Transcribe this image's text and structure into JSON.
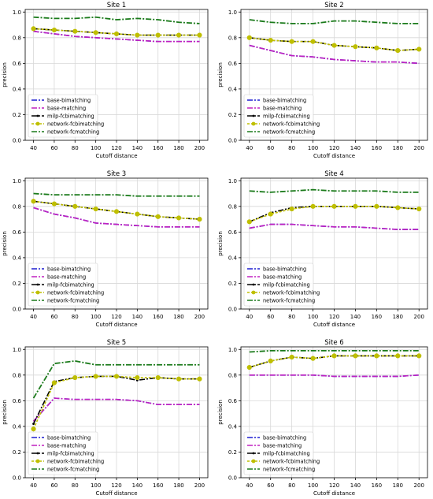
{
  "shared": {
    "xlabel": "Cutoff distance",
    "ylabel": "precision",
    "x": [
      40,
      60,
      80,
      100,
      120,
      140,
      160,
      180,
      200
    ],
    "xticks": [
      "40",
      "60",
      "80",
      "100",
      "120",
      "140",
      "160",
      "180",
      "200"
    ],
    "yticks": [
      "0.0",
      "0.2",
      "0.4",
      "0.6",
      "0.8",
      "1.0"
    ],
    "legend": [
      {
        "name": "base-bimatching",
        "color": "#1f1fd0",
        "marker": "none"
      },
      {
        "name": "base-matching",
        "color": "#c020c0",
        "marker": "none"
      },
      {
        "name": "milp-fcbimatching",
        "color": "#000000",
        "marker": "dot"
      },
      {
        "name": "network-fcbimatching",
        "color": "#bfbf00",
        "marker": "circle"
      },
      {
        "name": "network-fcmatching",
        "color": "#1a7a1a",
        "marker": "none"
      }
    ]
  },
  "chart_data": [
    {
      "type": "line",
      "title": "Site 1",
      "xlabel": "Cutoff distance",
      "ylabel": "precision",
      "ylim": [
        0,
        1.0
      ],
      "grid": true,
      "legend_position": "lower-left",
      "categories": [
        40,
        60,
        80,
        100,
        120,
        140,
        160,
        180,
        200
      ],
      "series": [
        {
          "name": "base-bimatching",
          "values": [
            0.85,
            0.83,
            0.81,
            0.8,
            0.79,
            0.78,
            0.77,
            0.77,
            0.77
          ]
        },
        {
          "name": "base-matching",
          "values": [
            0.85,
            0.83,
            0.81,
            0.8,
            0.79,
            0.78,
            0.77,
            0.77,
            0.77
          ]
        },
        {
          "name": "milp-fcbimatching",
          "values": [
            0.87,
            0.86,
            0.85,
            0.84,
            0.83,
            0.82,
            0.82,
            0.82,
            0.82
          ]
        },
        {
          "name": "network-fcbimatching",
          "values": [
            0.87,
            0.86,
            0.85,
            0.84,
            0.83,
            0.82,
            0.82,
            0.82,
            0.82
          ]
        },
        {
          "name": "network-fcmatching",
          "values": [
            0.96,
            0.95,
            0.95,
            0.96,
            0.94,
            0.95,
            0.94,
            0.92,
            0.91
          ]
        }
      ]
    },
    {
      "type": "line",
      "title": "Site 2",
      "xlabel": "Cutoff distance",
      "ylabel": "precision",
      "ylim": [
        0,
        1.0
      ],
      "grid": true,
      "legend_position": "lower-left",
      "categories": [
        40,
        60,
        80,
        100,
        120,
        140,
        160,
        180,
        200
      ],
      "series": [
        {
          "name": "base-bimatching",
          "values": [
            0.74,
            0.7,
            0.66,
            0.65,
            0.63,
            0.62,
            0.61,
            0.61,
            0.6
          ]
        },
        {
          "name": "base-matching",
          "values": [
            0.74,
            0.7,
            0.66,
            0.65,
            0.63,
            0.62,
            0.61,
            0.61,
            0.6
          ]
        },
        {
          "name": "milp-fcbimatching",
          "values": [
            0.8,
            0.78,
            0.77,
            0.77,
            0.74,
            0.73,
            0.72,
            0.7,
            0.71
          ]
        },
        {
          "name": "network-fcbimatching",
          "values": [
            0.8,
            0.78,
            0.77,
            0.77,
            0.74,
            0.73,
            0.72,
            0.7,
            0.71
          ]
        },
        {
          "name": "network-fcmatching",
          "values": [
            0.94,
            0.92,
            0.91,
            0.91,
            0.93,
            0.93,
            0.92,
            0.91,
            0.91
          ]
        }
      ]
    },
    {
      "type": "line",
      "title": "Site 3",
      "xlabel": "Cutoff distance",
      "ylabel": "precision",
      "ylim": [
        0,
        1.0
      ],
      "grid": true,
      "legend_position": "lower-left",
      "categories": [
        40,
        60,
        80,
        100,
        120,
        140,
        160,
        180,
        200
      ],
      "series": [
        {
          "name": "base-bimatching",
          "values": [
            0.79,
            0.74,
            0.71,
            0.67,
            0.66,
            0.65,
            0.64,
            0.64,
            0.64
          ]
        },
        {
          "name": "base-matching",
          "values": [
            0.79,
            0.74,
            0.71,
            0.67,
            0.66,
            0.65,
            0.64,
            0.64,
            0.64
          ]
        },
        {
          "name": "milp-fcbimatching",
          "values": [
            0.84,
            0.82,
            0.8,
            0.78,
            0.76,
            0.74,
            0.72,
            0.71,
            0.7
          ]
        },
        {
          "name": "network-fcbimatching",
          "values": [
            0.84,
            0.82,
            0.8,
            0.78,
            0.76,
            0.74,
            0.72,
            0.71,
            0.7
          ]
        },
        {
          "name": "network-fcmatching",
          "values": [
            0.9,
            0.89,
            0.89,
            0.89,
            0.89,
            0.88,
            0.88,
            0.88,
            0.88
          ]
        }
      ]
    },
    {
      "type": "line",
      "title": "Site 4",
      "xlabel": "Cutoff distance",
      "ylabel": "precision",
      "ylim": [
        0,
        1.0
      ],
      "grid": true,
      "legend_position": "lower-left",
      "categories": [
        40,
        60,
        80,
        100,
        120,
        140,
        160,
        180,
        200
      ],
      "series": [
        {
          "name": "base-bimatching",
          "values": [
            0.63,
            0.66,
            0.66,
            0.65,
            0.64,
            0.64,
            0.63,
            0.62,
            0.62
          ]
        },
        {
          "name": "base-matching",
          "values": [
            0.63,
            0.66,
            0.66,
            0.65,
            0.64,
            0.64,
            0.63,
            0.62,
            0.62
          ]
        },
        {
          "name": "milp-fcbimatching",
          "values": [
            0.68,
            0.75,
            0.79,
            0.8,
            0.8,
            0.8,
            0.8,
            0.79,
            0.78
          ]
        },
        {
          "name": "network-fcbimatching",
          "values": [
            0.68,
            0.74,
            0.78,
            0.8,
            0.8,
            0.8,
            0.8,
            0.79,
            0.78
          ]
        },
        {
          "name": "network-fcmatching",
          "values": [
            0.92,
            0.91,
            0.92,
            0.93,
            0.92,
            0.92,
            0.92,
            0.91,
            0.91
          ]
        }
      ]
    },
    {
      "type": "line",
      "title": "Site 5",
      "xlabel": "Cutoff distance",
      "ylabel": "precision",
      "ylim": [
        0,
        1.0
      ],
      "grid": true,
      "legend_position": "lower-left",
      "categories": [
        40,
        60,
        80,
        100,
        120,
        140,
        160,
        180,
        200
      ],
      "series": [
        {
          "name": "base-bimatching",
          "values": [
            0.44,
            0.62,
            0.61,
            0.61,
            0.61,
            0.6,
            0.57,
            0.57,
            0.57
          ]
        },
        {
          "name": "base-matching",
          "values": [
            0.44,
            0.62,
            0.61,
            0.61,
            0.61,
            0.6,
            0.57,
            0.57,
            0.57
          ]
        },
        {
          "name": "milp-fcbimatching",
          "values": [
            0.42,
            0.75,
            0.78,
            0.79,
            0.79,
            0.76,
            0.78,
            0.77,
            0.77
          ]
        },
        {
          "name": "network-fcbimatching",
          "values": [
            0.38,
            0.74,
            0.78,
            0.79,
            0.79,
            0.78,
            0.78,
            0.77,
            0.77
          ]
        },
        {
          "name": "network-fcmatching",
          "values": [
            0.62,
            0.89,
            0.91,
            0.88,
            0.88,
            0.88,
            0.88,
            0.88,
            0.88
          ]
        }
      ]
    },
    {
      "type": "line",
      "title": "Site 6",
      "xlabel": "Cutoff distance",
      "ylabel": "precision",
      "ylim": [
        0,
        1.0
      ],
      "grid": true,
      "legend_position": "lower-left",
      "categories": [
        40,
        60,
        80,
        100,
        120,
        140,
        160,
        180,
        200
      ],
      "series": [
        {
          "name": "base-bimatching",
          "values": [
            0.8,
            0.8,
            0.8,
            0.8,
            0.79,
            0.79,
            0.79,
            0.79,
            0.8
          ]
        },
        {
          "name": "base-matching",
          "values": [
            0.8,
            0.8,
            0.8,
            0.8,
            0.79,
            0.79,
            0.79,
            0.79,
            0.8
          ]
        },
        {
          "name": "milp-fcbimatching",
          "values": [
            0.86,
            0.91,
            0.94,
            0.93,
            0.95,
            0.95,
            0.95,
            0.95,
            0.95
          ]
        },
        {
          "name": "network-fcbimatching",
          "values": [
            0.86,
            0.91,
            0.94,
            0.93,
            0.95,
            0.95,
            0.95,
            0.95,
            0.95
          ]
        },
        {
          "name": "network-fcmatching",
          "values": [
            0.98,
            0.99,
            0.99,
            0.99,
            0.99,
            0.99,
            0.99,
            0.99,
            0.99
          ]
        }
      ]
    }
  ]
}
